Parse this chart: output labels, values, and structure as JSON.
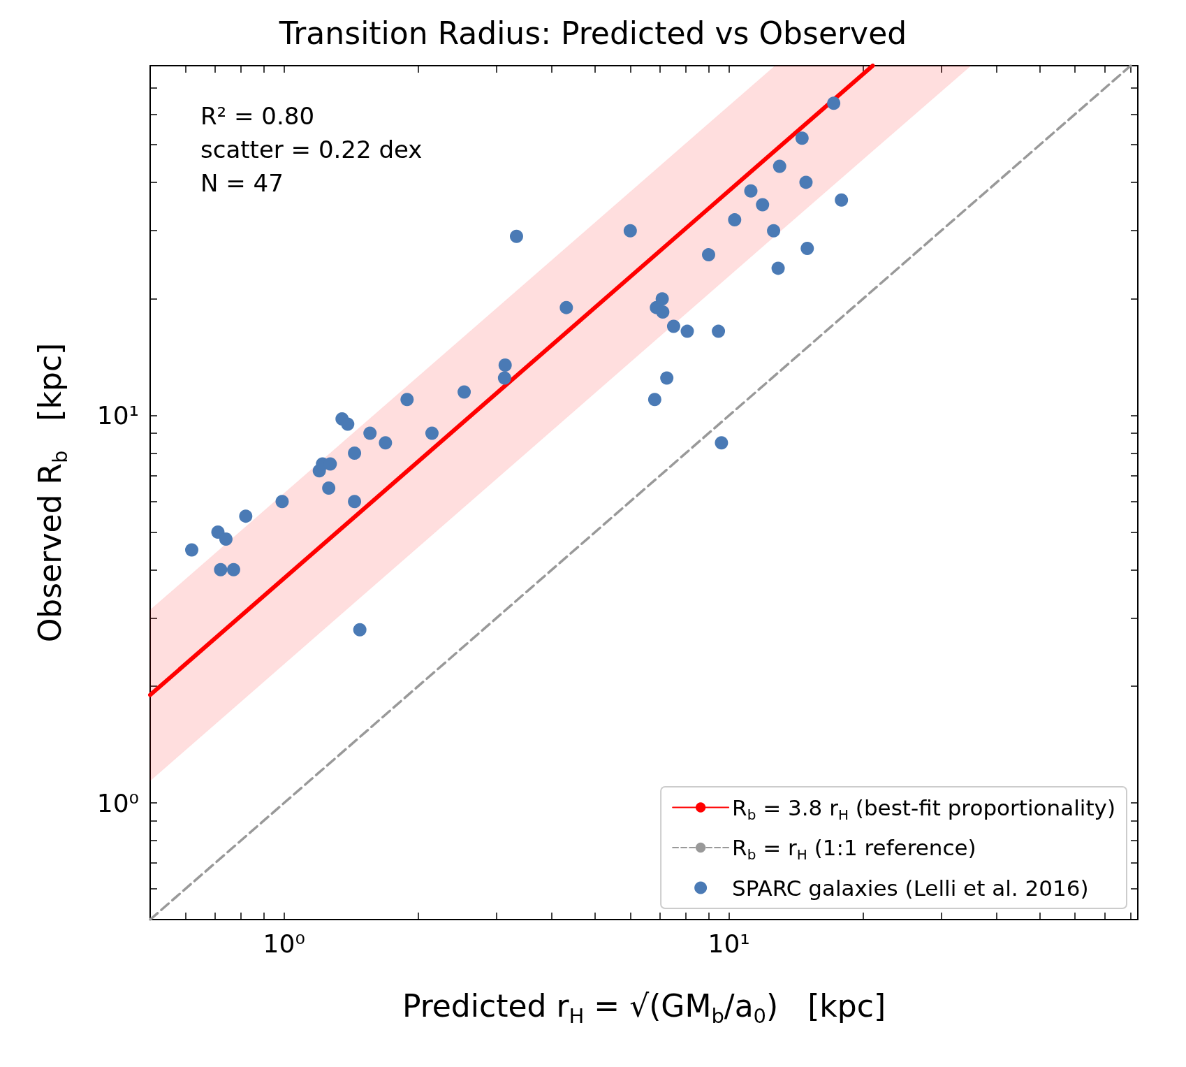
{
  "chart_data": {
    "type": "scatter",
    "title": "Transition Radius: Predicted vs Observed",
    "xlabel": "Predicted r$_{H}$ = √(GM$_{b}$/a$_{0}$)   [kpc]",
    "ylabel": "Observed R$_{b}$   [kpc]",
    "log": "xy",
    "xlim": [
      0.5,
      83
    ],
    "ylim": [
      0.5,
      80
    ],
    "xticks": [
      {
        "value": 0.6,
        "label": null
      },
      {
        "value": 0.7,
        "label": null
      },
      {
        "value": 0.8,
        "label": null
      },
      {
        "value": 0.9,
        "label": null
      },
      {
        "value": 1,
        "label": "10⁰"
      },
      {
        "value": 2,
        "label": null
      },
      {
        "value": 3,
        "label": null
      },
      {
        "value": 4,
        "label": null
      },
      {
        "value": 5,
        "label": null
      },
      {
        "value": 6,
        "label": null
      },
      {
        "value": 7,
        "label": null
      },
      {
        "value": 8,
        "label": null
      },
      {
        "value": 9,
        "label": null
      },
      {
        "value": 10,
        "label": "10¹"
      },
      {
        "value": 20,
        "label": null
      },
      {
        "value": 30,
        "label": null
      },
      {
        "value": 40,
        "label": null
      },
      {
        "value": 50,
        "label": null
      },
      {
        "value": 60,
        "label": null
      },
      {
        "value": 70,
        "label": null
      },
      {
        "value": 80,
        "label": null
      }
    ],
    "yticks": [
      {
        "value": 0.6,
        "label": null
      },
      {
        "value": 0.7,
        "label": null
      },
      {
        "value": 0.8,
        "label": null
      },
      {
        "value": 0.9,
        "label": null
      },
      {
        "value": 1,
        "label": "10⁰"
      },
      {
        "value": 2,
        "label": null
      },
      {
        "value": 3,
        "label": null
      },
      {
        "value": 4,
        "label": null
      },
      {
        "value": 5,
        "label": null
      },
      {
        "value": 6,
        "label": null
      },
      {
        "value": 7,
        "label": null
      },
      {
        "value": 8,
        "label": null
      },
      {
        "value": 9,
        "label": null
      },
      {
        "value": 10,
        "label": "10¹"
      },
      {
        "value": 20,
        "label": null
      },
      {
        "value": 30,
        "label": null
      },
      {
        "value": 40,
        "label": null
      },
      {
        "value": 50,
        "label": null
      },
      {
        "value": 60,
        "label": null
      },
      {
        "value": 70,
        "label": null
      }
    ],
    "marker": "circle",
    "legend": "bottom right",
    "annotations": [
      "R² = 0.80",
      "scatter = 0.22 dex",
      "N = 47"
    ],
    "series": [
      {
        "name": "R$_{b}$ = 3.8 r$_{H}$ (best-fit proportionality)",
        "type": "line",
        "marker": "none",
        "line_style": "solid",
        "color": "#ff0000",
        "x": [
          0.5,
          12.7,
          21.05,
          35
        ],
        "values": [
          1.9,
          48.3,
          80,
          null
        ],
        "lower": [
          1.14,
          29.1,
          48.2,
          80
        ],
        "upper": [
          3.15,
          80,
          80,
          80
        ]
      },
      {
        "name": "R$_{b}$ = r$_{H}$ (1:1 reference)",
        "type": "line",
        "marker": "none",
        "line_style": "dashed",
        "color": "#999999",
        "x": [
          0.5,
          80
        ],
        "values": [
          0.5,
          80
        ]
      },
      {
        "name": "SPARC galaxies (Lelli et al. 2016)",
        "color": "#4a7ab5",
        "x": [
          0.62,
          0.71,
          0.74,
          0.72,
          0.77,
          0.82,
          0.99,
          1.2,
          1.22,
          1.27,
          1.26,
          1.35,
          1.39,
          1.44,
          1.44,
          1.56,
          1.69,
          1.48,
          1.89,
          2.15,
          2.54,
          3.14,
          3.13,
          3.33,
          4.31,
          6.0,
          6.81,
          6.87,
          7.08,
          7.1,
          7.25,
          7.51,
          8.06,
          9.0,
          9.47,
          9.62,
          10.3,
          11.2,
          11.9,
          12.6,
          12.9,
          13.0,
          14.6,
          14.9,
          15.0,
          17.2,
          17.9
        ],
        "values": [
          4.5,
          5.0,
          4.8,
          4.0,
          4.0,
          5.5,
          6.0,
          7.2,
          7.5,
          7.5,
          6.5,
          9.8,
          9.5,
          8.0,
          6.0,
          9.0,
          8.5,
          2.8,
          11.0,
          9.0,
          11.5,
          13.5,
          12.5,
          29,
          19,
          30,
          11.0,
          19,
          20,
          18.5,
          12.5,
          17.0,
          16.5,
          26,
          16.5,
          8.5,
          32,
          38,
          35,
          30,
          24,
          44,
          52,
          40,
          27,
          64,
          36
        ]
      }
    ]
  }
}
